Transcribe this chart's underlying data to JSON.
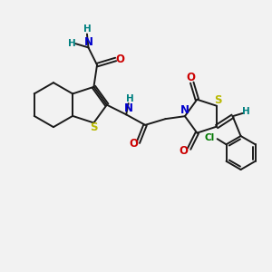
{
  "bg_color": "#f2f2f2",
  "bond_color": "#1a1a1a",
  "S_color": "#b8b800",
  "N_color": "#0000cc",
  "O_color": "#cc0000",
  "H_color": "#008080",
  "Cl_color": "#007700",
  "font_size": 8.5,
  "linewidth": 1.4,
  "xlim": [
    0,
    10
  ],
  "ylim": [
    0,
    10
  ],
  "figsize": [
    3.0,
    3.0
  ],
  "dpi": 100
}
